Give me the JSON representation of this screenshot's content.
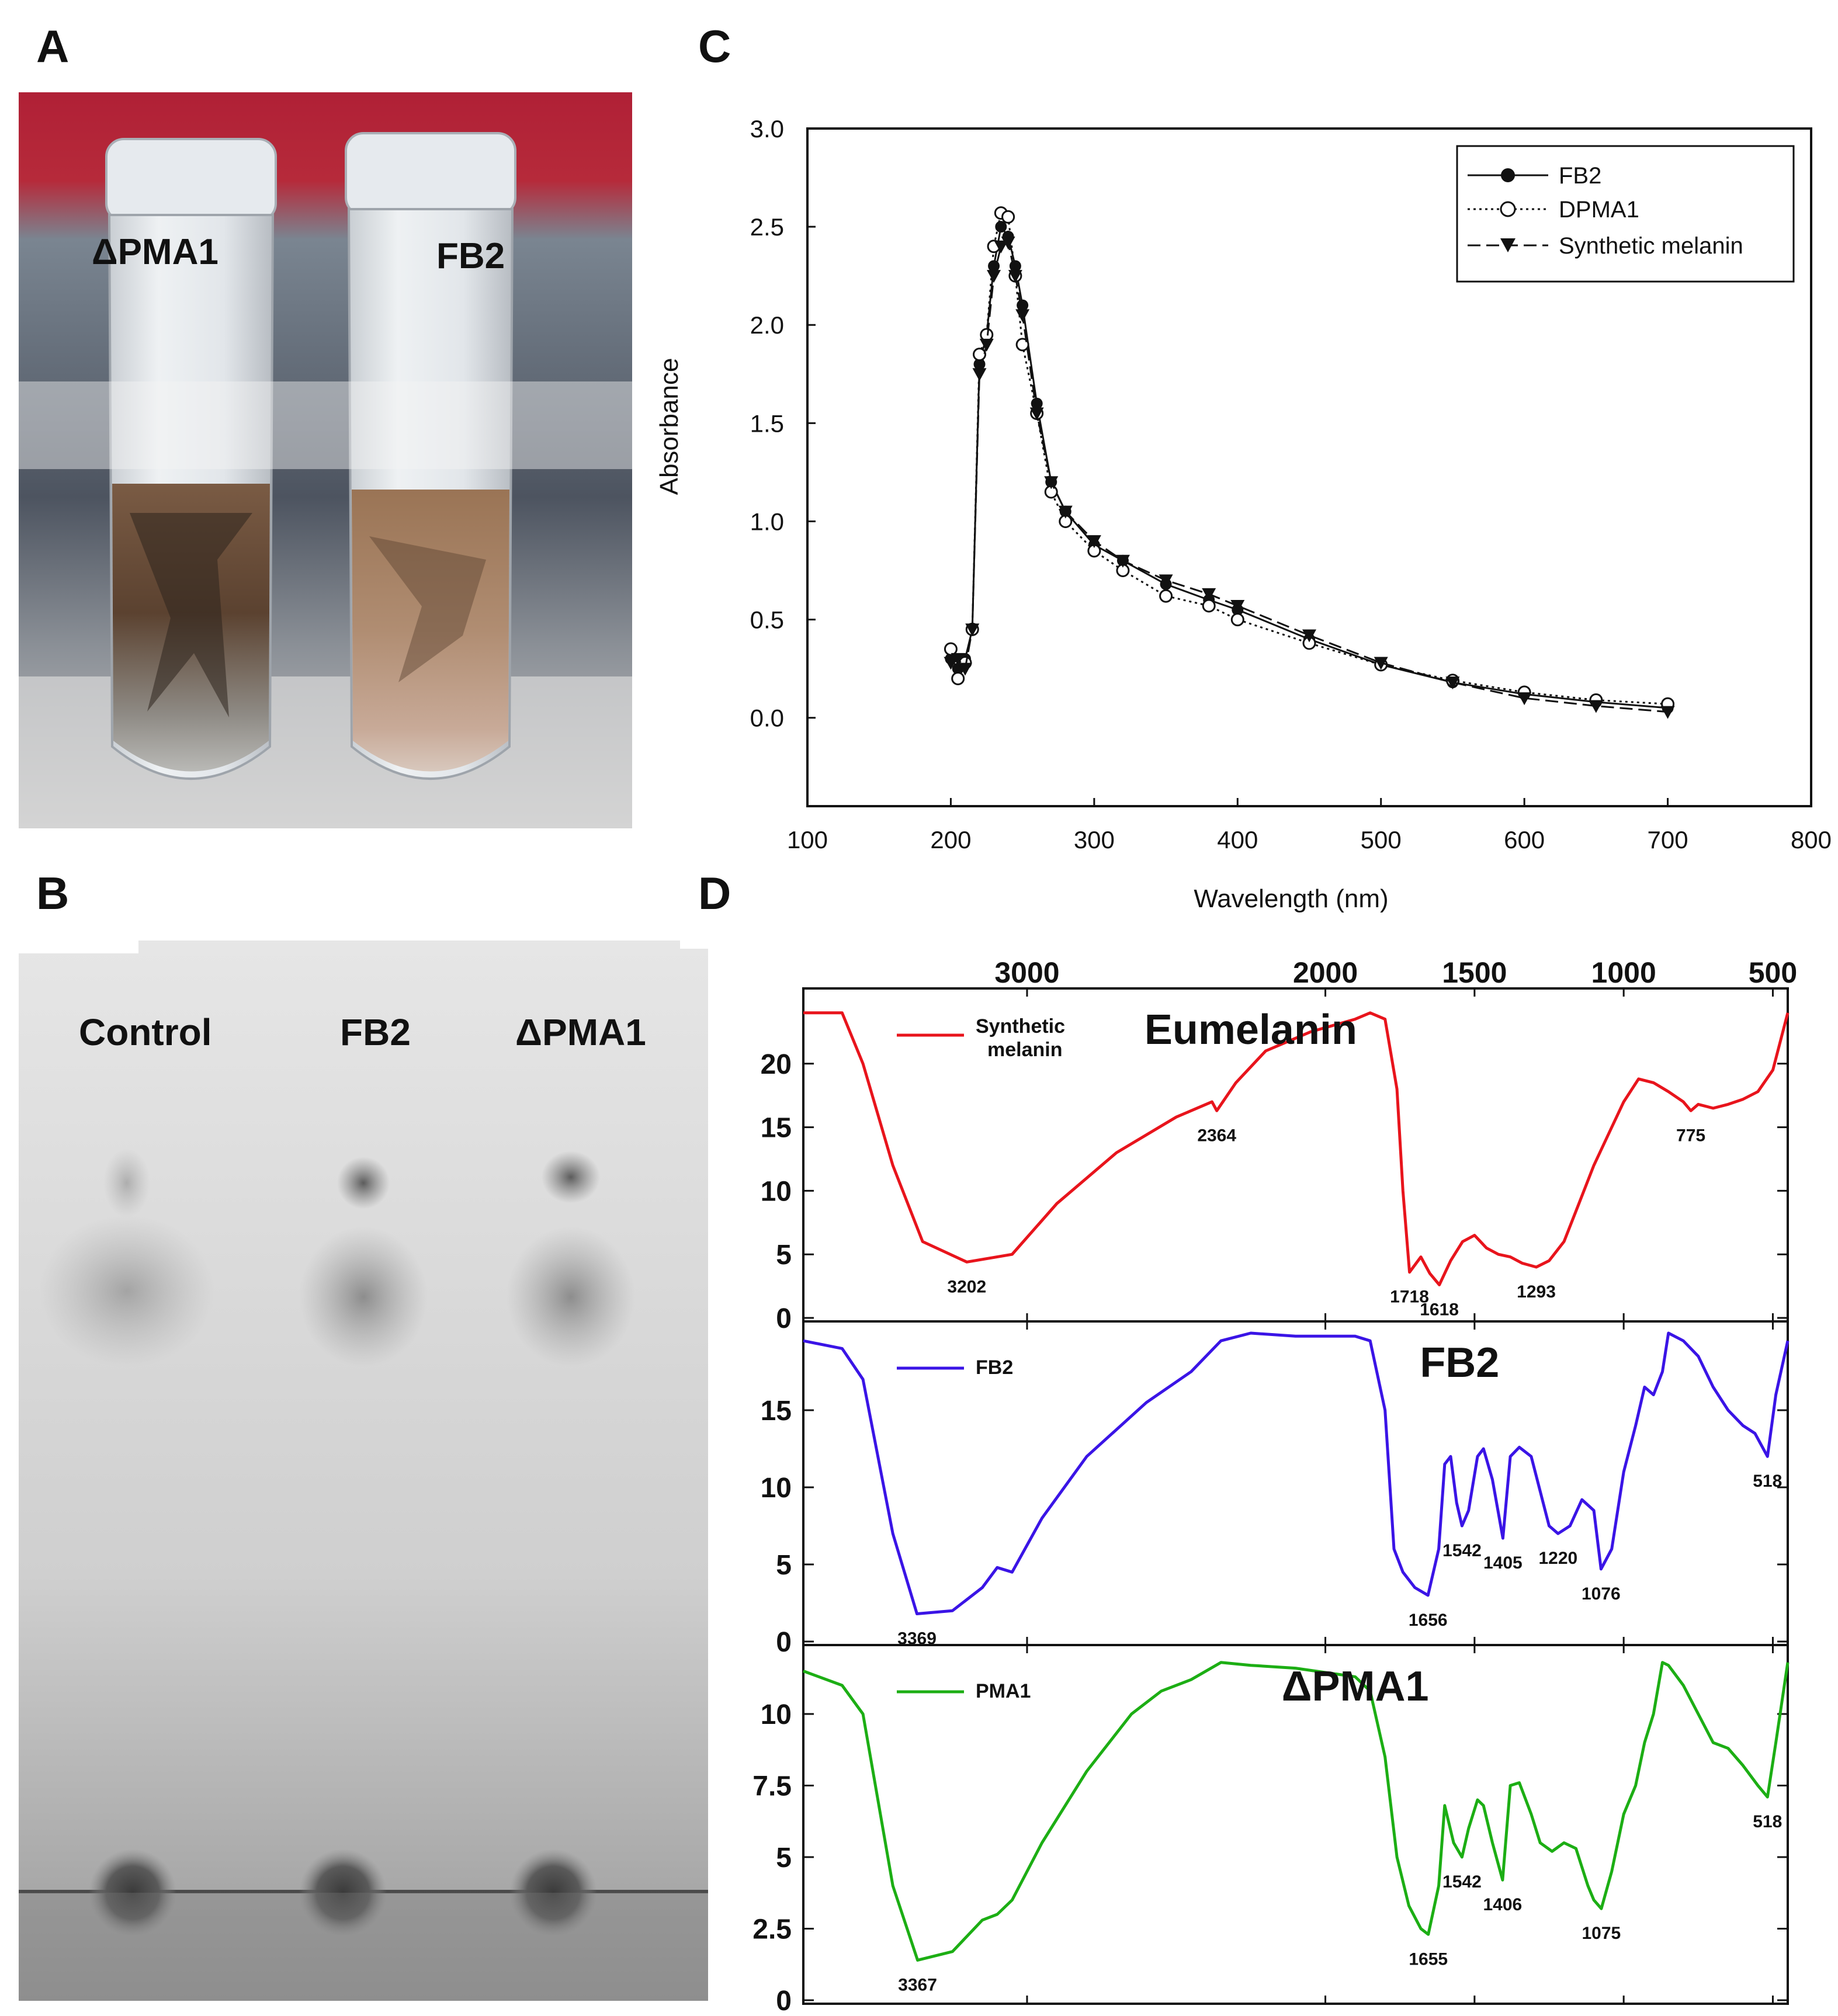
{
  "panels": {
    "a": "A",
    "b": "B",
    "c": "C",
    "d": "D"
  },
  "panel_a": {
    "tube_labels": [
      "ΔPMA1",
      "FB2"
    ]
  },
  "panel_b": {
    "lane_labels": [
      "Control",
      "FB2",
      "ΔPMA1"
    ]
  },
  "colors": {
    "synthetic": "#e8141c",
    "fb2": "#3a14e6",
    "pma1": "#1cae14",
    "uv": "#111111"
  },
  "chart_data": [
    {
      "type": "line",
      "panel": "C",
      "title": "",
      "xlabel": "Wavelength (nm)",
      "ylabel": "Absorbance",
      "xlim": [
        100,
        800
      ],
      "ylim": [
        -0.45,
        3.0
      ],
      "xticks": [
        "100",
        "200",
        "300",
        "400",
        "500",
        "600",
        "700",
        "800"
      ],
      "yticks": [
        "0.0",
        "0.5",
        "1.0",
        "1.5",
        "2.0",
        "2.5",
        "3.0"
      ],
      "legend": {
        "position": "top-right",
        "entries": [
          "FB2",
          "DPMA1",
          "Synthetic melanin"
        ]
      },
      "series": [
        {
          "name": "FB2",
          "x": [
            200,
            205,
            210,
            215,
            220,
            225,
            230,
            235,
            240,
            245,
            250,
            260,
            270,
            280,
            300,
            320,
            350,
            380,
            400,
            450,
            500,
            550,
            600,
            650,
            700
          ],
          "y": [
            0.3,
            0.25,
            0.3,
            0.45,
            1.8,
            1.95,
            2.3,
            2.5,
            2.45,
            2.3,
            2.1,
            1.6,
            1.2,
            1.05,
            0.88,
            0.8,
            0.68,
            0.6,
            0.55,
            0.4,
            0.27,
            0.18,
            0.12,
            0.08,
            0.05
          ]
        },
        {
          "name": "DPMA1",
          "x": [
            200,
            205,
            210,
            215,
            220,
            225,
            230,
            235,
            240,
            245,
            250,
            260,
            270,
            280,
            300,
            320,
            350,
            380,
            400,
            450,
            500,
            550,
            600,
            650,
            700
          ],
          "y": [
            0.35,
            0.2,
            0.28,
            0.45,
            1.85,
            1.95,
            2.4,
            2.57,
            2.55,
            2.25,
            1.9,
            1.55,
            1.15,
            1.0,
            0.85,
            0.75,
            0.62,
            0.57,
            0.5,
            0.38,
            0.27,
            0.19,
            0.13,
            0.09,
            0.07
          ]
        },
        {
          "name": "Synthetic melanin",
          "x": [
            200,
            205,
            210,
            215,
            220,
            225,
            230,
            235,
            240,
            245,
            250,
            260,
            270,
            280,
            300,
            320,
            350,
            380,
            400,
            450,
            500,
            550,
            600,
            650,
            700
          ],
          "y": [
            0.28,
            0.3,
            0.25,
            0.45,
            1.75,
            1.9,
            2.25,
            2.4,
            2.42,
            2.25,
            2.05,
            1.55,
            1.2,
            1.05,
            0.9,
            0.8,
            0.7,
            0.63,
            0.57,
            0.42,
            0.28,
            0.18,
            0.1,
            0.06,
            0.03
          ]
        }
      ]
    },
    {
      "type": "line",
      "panel": "D",
      "title": "",
      "xlabel": "",
      "ylabel": "",
      "xlim": [
        3750,
        450
      ],
      "xticks": [
        "3000",
        "2000",
        "1500",
        "1000",
        "500"
      ],
      "subplots": [
        {
          "name": "Synthetic melanin",
          "heading": "Eumelanin",
          "legend": "Synthetic\nmelanin",
          "ylim": [
            0,
            25
          ],
          "yticks": [
            "0",
            "5",
            "10",
            "15",
            "20"
          ],
          "x": [
            3750,
            3620,
            3550,
            3450,
            3350,
            3202,
            3050,
            2900,
            2700,
            2500,
            2380,
            2364,
            2300,
            2200,
            2050,
            1900,
            1850,
            1800,
            1760,
            1740,
            1718,
            1680,
            1650,
            1618,
            1580,
            1540,
            1500,
            1460,
            1420,
            1380,
            1340,
            1293,
            1250,
            1200,
            1150,
            1100,
            1050,
            1000,
            950,
            900,
            850,
            800,
            775,
            750,
            700,
            650,
            600,
            550,
            500,
            450
          ],
          "y": [
            24,
            24,
            20,
            12,
            6,
            4.4,
            5,
            9,
            13,
            15.8,
            17,
            16.3,
            18.5,
            21,
            22.5,
            23.5,
            24,
            23.5,
            18,
            10,
            3.6,
            4.8,
            3.5,
            2.6,
            4.5,
            6,
            6.5,
            5.5,
            5,
            4.8,
            4.3,
            4,
            4.5,
            6,
            9,
            12,
            14.5,
            17,
            18.8,
            18.5,
            17.8,
            17,
            16.3,
            16.8,
            16.5,
            16.8,
            17.2,
            17.8,
            19.5,
            24
          ]
        },
        {
          "name": "FB2",
          "heading": "FB2",
          "legend": "FB2",
          "ylim": [
            0,
            20
          ],
          "yticks": [
            "0",
            "5",
            "10",
            "15"
          ],
          "x": [
            3750,
            3620,
            3550,
            3450,
            3369,
            3250,
            3150,
            3100,
            3050,
            2950,
            2800,
            2600,
            2450,
            2350,
            2250,
            2100,
            1900,
            1850,
            1800,
            1770,
            1740,
            1700,
            1656,
            1620,
            1600,
            1580,
            1560,
            1542,
            1520,
            1490,
            1470,
            1440,
            1405,
            1380,
            1350,
            1310,
            1270,
            1250,
            1220,
            1180,
            1140,
            1100,
            1076,
            1040,
            1000,
            960,
            930,
            900,
            870,
            850,
            800,
            750,
            700,
            650,
            600,
            560,
            518,
            490,
            450
          ],
          "y": [
            19.5,
            19,
            17,
            7,
            1.8,
            2,
            3.5,
            4.8,
            4.5,
            8,
            12,
            15.5,
            17.5,
            19.5,
            20,
            19.8,
            19.8,
            19.5,
            15,
            6,
            4.5,
            3.5,
            3,
            6,
            11.5,
            12,
            9,
            7.5,
            8.5,
            12,
            12.5,
            10.5,
            6.7,
            12,
            12.6,
            12,
            9,
            7.5,
            7,
            7.5,
            9.2,
            8.5,
            4.7,
            6,
            11,
            14,
            16.5,
            16,
            17.5,
            20,
            19.5,
            18.5,
            16.5,
            15,
            14,
            13.5,
            12,
            16,
            19.5
          ]
        },
        {
          "name": "PMA1",
          "heading": "ΔPMA1",
          "legend": "PMA1",
          "ylim": [
            0,
            12
          ],
          "yticks": [
            "0",
            "2.5",
            "5",
            "7.5",
            "10"
          ],
          "x": [
            3750,
            3620,
            3550,
            3450,
            3367,
            3250,
            3150,
            3100,
            3050,
            2950,
            2800,
            2650,
            2550,
            2450,
            2350,
            2250,
            2100,
            1900,
            1850,
            1800,
            1760,
            1720,
            1680,
            1655,
            1620,
            1600,
            1570,
            1542,
            1520,
            1490,
            1470,
            1440,
            1406,
            1380,
            1350,
            1310,
            1280,
            1240,
            1200,
            1160,
            1120,
            1100,
            1075,
            1040,
            1000,
            960,
            930,
            900,
            870,
            850,
            800,
            750,
            700,
            650,
            600,
            550,
            518,
            490,
            450
          ],
          "y": [
            11.5,
            11,
            10,
            4,
            1.4,
            1.7,
            2.8,
            3,
            3.5,
            5.5,
            8,
            10,
            10.8,
            11.2,
            11.8,
            11.7,
            11.6,
            11.3,
            10.8,
            8.5,
            5,
            3.3,
            2.5,
            2.3,
            4,
            6.8,
            5.5,
            5,
            6,
            7,
            6.8,
            5.5,
            4.2,
            7.5,
            7.6,
            6.5,
            5.5,
            5.2,
            5.5,
            5.3,
            4,
            3.5,
            3.2,
            4.5,
            6.5,
            7.5,
            9,
            10,
            11.8,
            11.7,
            11,
            10,
            9,
            8.8,
            8.2,
            7.5,
            7.1,
            9,
            11.8
          ]
        }
      ],
      "annotations": [
        {
          "subplot": 0,
          "label": "3202",
          "x": 3202,
          "y": 4.4
        },
        {
          "subplot": 0,
          "label": "2364",
          "x": 2364,
          "y": 16.3
        },
        {
          "subplot": 0,
          "label": "1718",
          "x": 1718,
          "y": 3.6
        },
        {
          "subplot": 0,
          "label": "1618",
          "x": 1618,
          "y": 2.6
        },
        {
          "subplot": 0,
          "label": "1293",
          "x": 1293,
          "y": 4
        },
        {
          "subplot": 0,
          "label": "775",
          "x": 775,
          "y": 16.3
        },
        {
          "subplot": 1,
          "label": "3369",
          "x": 3369,
          "y": 1.8
        },
        {
          "subplot": 1,
          "label": "1656",
          "x": 1656,
          "y": 3
        },
        {
          "subplot": 1,
          "label": "1542",
          "x": 1542,
          "y": 7.5
        },
        {
          "subplot": 1,
          "label": "1405",
          "x": 1405,
          "y": 6.7
        },
        {
          "subplot": 1,
          "label": "1220",
          "x": 1220,
          "y": 7
        },
        {
          "subplot": 1,
          "label": "1076",
          "x": 1076,
          "y": 4.7
        },
        {
          "subplot": 1,
          "label": "518",
          "x": 518,
          "y": 12
        },
        {
          "subplot": 2,
          "label": "3367",
          "x": 3367,
          "y": 1.4
        },
        {
          "subplot": 2,
          "label": "1655",
          "x": 1655,
          "y": 2.3
        },
        {
          "subplot": 2,
          "label": "1542",
          "x": 1542,
          "y": 5
        },
        {
          "subplot": 2,
          "label": "1406",
          "x": 1406,
          "y": 4.2
        },
        {
          "subplot": 2,
          "label": "1075",
          "x": 1075,
          "y": 3.2
        },
        {
          "subplot": 2,
          "label": "518",
          "x": 518,
          "y": 7.1
        }
      ]
    }
  ]
}
